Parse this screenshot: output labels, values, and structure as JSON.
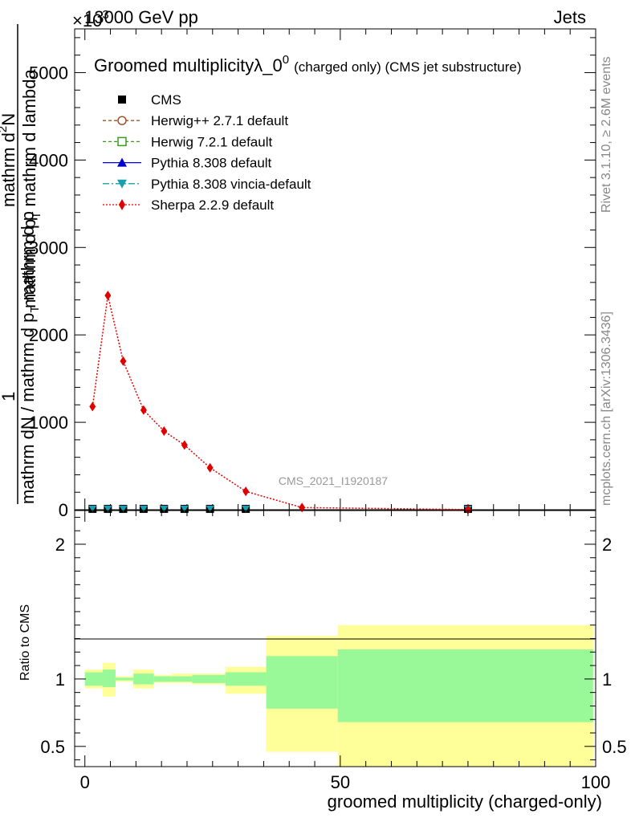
{
  "header": {
    "left": "13000 GeV pp",
    "right": "Jets",
    "exponent": "×10",
    "exponent_power": "3"
  },
  "side_labels": {
    "rivet": "Rivet 3.1.10, ≥ 2.6M events",
    "mcplots": "mcplots.cern.ch [arXiv:1306.3436]"
  },
  "chart_data": [
    {
      "type": "line",
      "title": "Groomed multiplicityλ_0",
      "title_sup": "0",
      "title_suffix": "(charged only) (CMS jet substructure)",
      "ylabel_line1": "1",
      "ylabel_line2": "mathrm dN / mathrm d p",
      "ylabel_line2_sub": "T",
      "ylabel_line2_rest": " mathrm d p",
      "ylabel_line3": "mathrm d",
      "ylabel_line3_sup": "2",
      "ylabel_line3_rest": "N",
      "ylabel_line4": "mathrm d p",
      "ylabel_line4_sub": "T",
      "ylabel_line4_rest": " mathrm d lambda",
      "analysis_id": "CMS_2021_I1920187",
      "xlim": [
        -2,
        100
      ],
      "ylim": [
        0,
        5500
      ],
      "y_ticks": [
        0,
        1000,
        2000,
        3000,
        4000,
        5000
      ],
      "y_tick_labels": [
        "0",
        "1000",
        "2000",
        "3000",
        "4000",
        "5000"
      ],
      "legend_position": "top-left",
      "legend": [
        {
          "label": "CMS",
          "color": "#000000",
          "marker": "square"
        },
        {
          "label": "Herwig++ 2.7.1 default",
          "color": "#a0522d",
          "marker": "open-circle"
        },
        {
          "label": "Herwig 7.2.1 default",
          "color": "#3a9a1a",
          "marker": "open-square"
        },
        {
          "label": "Pythia 8.308 default",
          "color": "#0000c8",
          "marker": "triangle-up"
        },
        {
          "label": "Pythia 8.308 vincia-default",
          "color": "#1a9fb0",
          "marker": "triangle-down"
        },
        {
          "label": "Sherpa 2.2.9 default",
          "color": "#e00000",
          "marker": "diamond"
        }
      ],
      "series": [
        {
          "name": "Sherpa 2.2.9 default",
          "color": "#e00000",
          "x": [
            1.5,
            4.5,
            7.5,
            11.5,
            15.5,
            19.5,
            24.5,
            31.5,
            42.5,
            75
          ],
          "values": [
            1180,
            2450,
            1700,
            1140,
            900,
            740,
            480,
            210,
            25,
            2
          ]
        },
        {
          "name": "CMS",
          "color": "#000000",
          "x": [
            1.5,
            4.5,
            7.5,
            11.5,
            15.5,
            19.5,
            24.5,
            31.5,
            75
          ],
          "values": [
            10,
            10,
            10,
            10,
            10,
            10,
            10,
            10,
            10
          ]
        }
      ]
    },
    {
      "type": "area",
      "ylabel": "Ratio to CMS",
      "xlabel": "groomed multiplicity (charged-only)",
      "xlim": [
        -2,
        100
      ],
      "ylim": [
        0.35,
        2.25
      ],
      "x_ticks": [
        0,
        50,
        100
      ],
      "x_tick_labels": [
        "0",
        "50",
        "100"
      ],
      "y_ticks": [
        0.5,
        1,
        2
      ],
      "y_tick_labels": [
        "0.5",
        "1",
        "2"
      ],
      "bins": [
        {
          "lo": 0,
          "hi": 3.5,
          "stat_lo": 0.95,
          "stat_hi": 1.05,
          "tot_lo": 0.93,
          "tot_hi": 1.07
        },
        {
          "lo": 3.5,
          "hi": 6,
          "stat_lo": 0.94,
          "stat_hi": 1.07,
          "tot_lo": 0.87,
          "tot_hi": 1.12
        },
        {
          "lo": 6,
          "hi": 9.5,
          "stat_lo": 0.99,
          "stat_hi": 1.01,
          "tot_lo": 0.98,
          "tot_hi": 1.02
        },
        {
          "lo": 9.5,
          "hi": 13.5,
          "stat_lo": 0.96,
          "stat_hi": 1.04,
          "tot_lo": 0.93,
          "tot_hi": 1.07
        },
        {
          "lo": 13.5,
          "hi": 17,
          "stat_lo": 0.98,
          "stat_hi": 1.02,
          "tot_lo": 0.97,
          "tot_hi": 1.03
        },
        {
          "lo": 17,
          "hi": 21,
          "stat_lo": 0.98,
          "stat_hi": 1.02,
          "tot_lo": 0.97,
          "tot_hi": 1.04
        },
        {
          "lo": 21,
          "hi": 27.5,
          "stat_lo": 0.97,
          "stat_hi": 1.03,
          "tot_lo": 0.96,
          "tot_hi": 1.04
        },
        {
          "lo": 27.5,
          "hi": 35.5,
          "stat_lo": 0.95,
          "stat_hi": 1.05,
          "tot_lo": 0.89,
          "tot_hi": 1.09
        },
        {
          "lo": 35.5,
          "hi": 49.5,
          "stat_lo": 0.78,
          "stat_hi": 1.17,
          "tot_lo": 0.46,
          "tot_hi": 1.32
        },
        {
          "lo": 49.5,
          "hi": 99.5,
          "stat_lo": 0.68,
          "stat_hi": 1.22,
          "tot_lo": 0.35,
          "tot_hi": 1.4
        }
      ],
      "stat_color": "#99f999",
      "tot_color": "#ffff99"
    }
  ]
}
